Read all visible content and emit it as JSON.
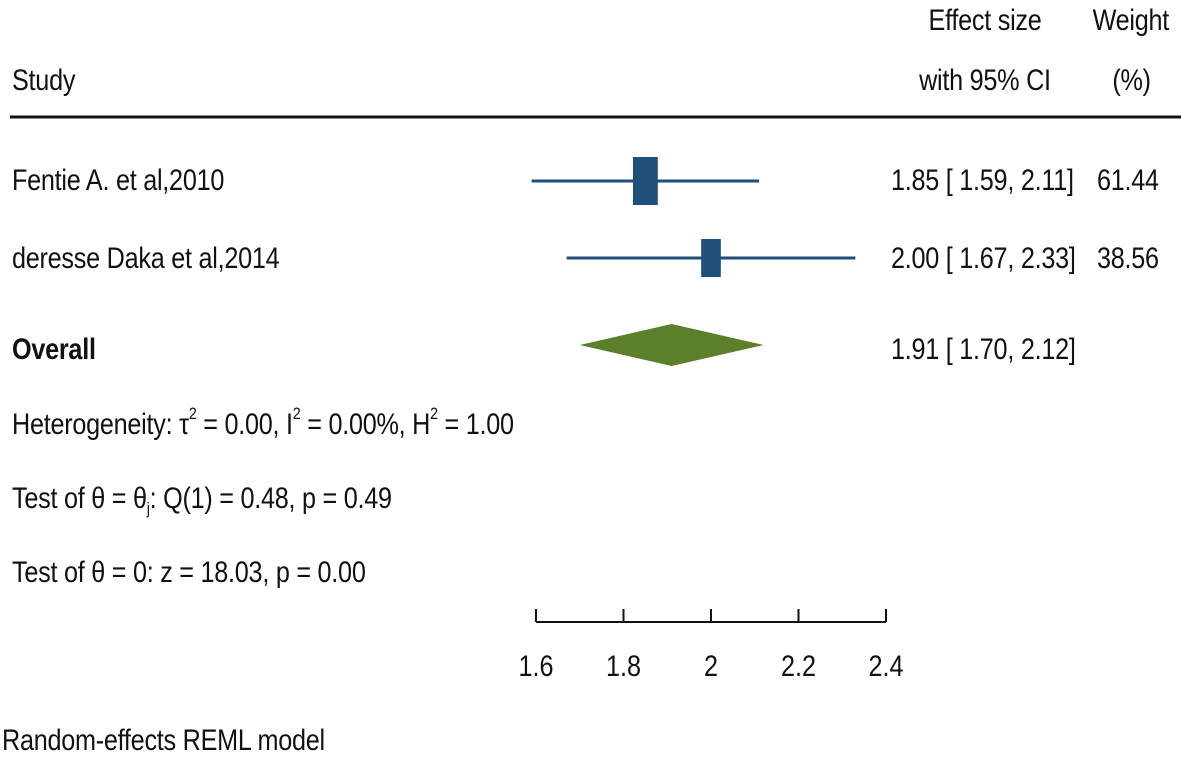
{
  "header": {
    "study": "Study",
    "effect_line1": "Effect size",
    "effect_line2": "with 95% CI",
    "weight_line1": "Weight",
    "weight_line2": "(%)"
  },
  "studies": [
    {
      "label": "Fentie A. et al,2010",
      "ci_text": "1.85 [ 1.59,  2.11]",
      "weight_text": "61.44"
    },
    {
      "label": "deresse Daka et al,2014",
      "ci_text": "2.00 [ 1.67,  2.33]",
      "weight_text": "38.56"
    }
  ],
  "overall": {
    "label": "Overall",
    "ci_text": "1.91 [ 1.70,  2.12]"
  },
  "stats": {
    "het_prefix": "Heterogeneity: ",
    "tau_sym": "τ",
    "tau_sup": "2",
    "tau_rest": " = 0.00, ",
    "i_sym": "I",
    "i_sup": "2",
    "i_rest": " = 0.00%, ",
    "h_sym": "H",
    "h_sup": "2",
    "h_rest": " = 1.00",
    "test1_a": "Test of θ = θ",
    "test1_sub": "j",
    "test1_b": ": Q(1) = 0.48, p = 0.49",
    "test2": "Test of θ = 0: z = 18.03, p = 0.00"
  },
  "footer": "Random-effects REML model",
  "colors": {
    "study_marker": "#1f4e79",
    "overall_diamond": "#5b7f2a",
    "rule": "#111111"
  },
  "chart_data": {
    "type": "forest",
    "x_ticks": [
      1.6,
      1.8,
      2,
      2.2,
      2.4
    ],
    "x_tick_labels": [
      "1.6",
      "1.8",
      "2",
      "2.2",
      "2.4"
    ],
    "xlim": [
      1.6,
      2.4
    ],
    "studies": [
      {
        "name": "Fentie A. et al,2010",
        "estimate": 1.85,
        "ci": [
          1.59,
          2.11
        ],
        "weight": 61.44
      },
      {
        "name": "deresse Daka et al,2014",
        "estimate": 2.0,
        "ci": [
          1.67,
          2.33
        ],
        "weight": 38.56
      }
    ],
    "overall": {
      "estimate": 1.91,
      "ci": [
        1.7,
        2.12
      ]
    }
  }
}
